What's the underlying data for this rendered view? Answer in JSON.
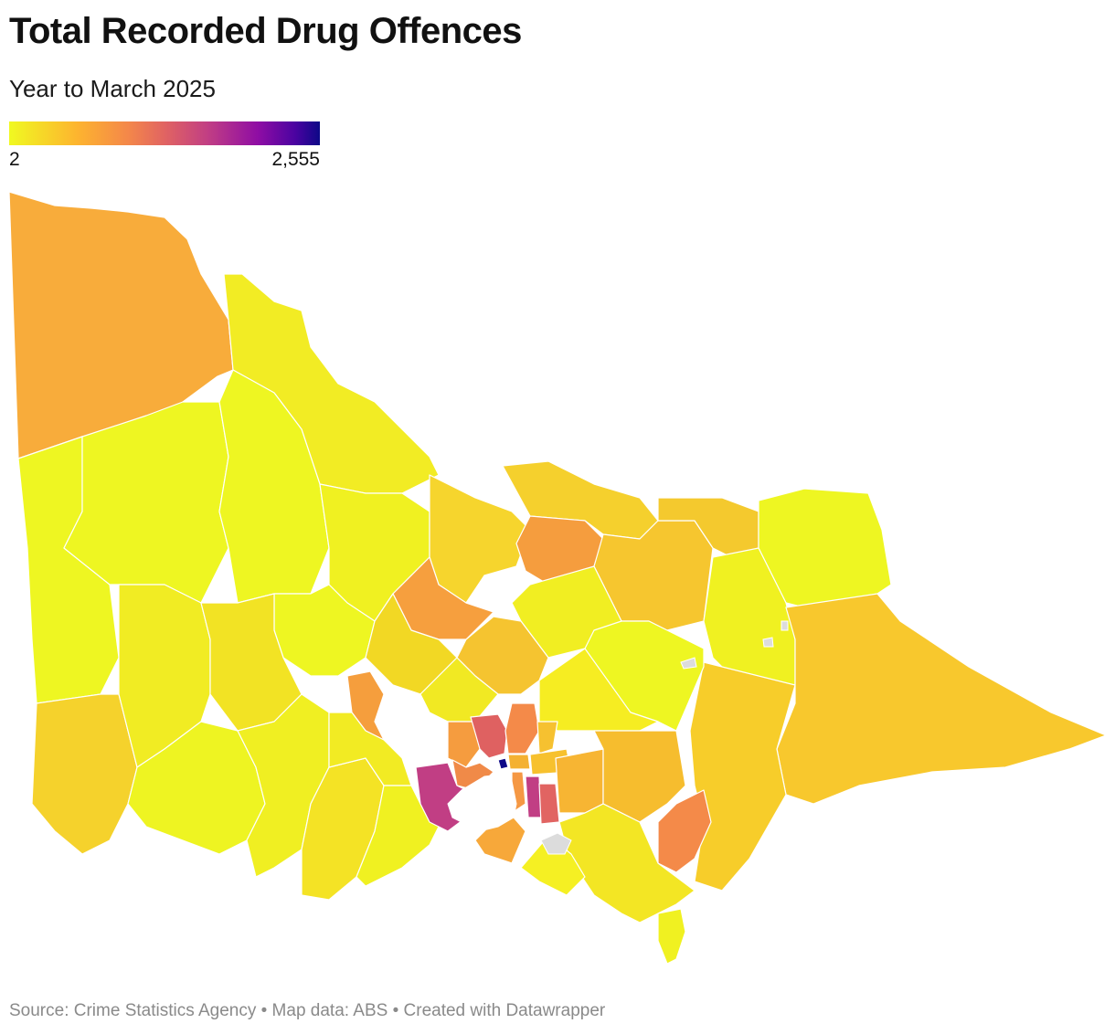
{
  "title": "Total Recorded Drug Offences",
  "subtitle": "Year to March 2025",
  "legend": {
    "min_label": "2",
    "max_label": "2,555",
    "colors": [
      "#f0f921",
      "#fdb42f",
      "#f48849",
      "#e16462",
      "#c13e84",
      "#8f0da4",
      "#4b03a1",
      "#0d0887"
    ]
  },
  "footer": {
    "source": "Source: Crime Statistics Agency",
    "map_data": "Map data: ABS",
    "credit": "Created with Datawrapper",
    "separator": "•"
  },
  "map": {
    "missing_color": "#dcdcdc",
    "water_color": "#ffffff"
  }
}
